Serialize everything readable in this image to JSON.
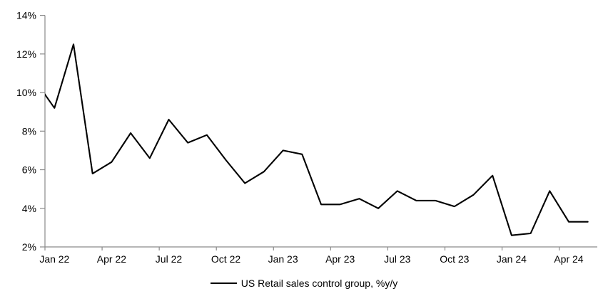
{
  "chart_data": {
    "type": "line",
    "title": "",
    "legend": "US Retail sales control group, %y/y",
    "x": [
      "Dec 21",
      "Jan 22",
      "Feb 22",
      "Mar 22",
      "Apr 22",
      "May 22",
      "Jun 22",
      "Jul 22",
      "Aug 22",
      "Sep 22",
      "Oct 22",
      "Nov 22",
      "Dec 22",
      "Jan 23",
      "Feb 23",
      "Mar 23",
      "Apr 23",
      "May 23",
      "Jun 23",
      "Jul 23",
      "Aug 23",
      "Sep 23",
      "Oct 23",
      "Nov 23",
      "Dec 23",
      "Jan 24",
      "Feb 24",
      "Mar 24",
      "Apr 24",
      "May 24"
    ],
    "values": [
      10.6,
      9.2,
      12.5,
      5.8,
      6.4,
      7.9,
      6.6,
      8.6,
      7.4,
      7.8,
      6.5,
      5.3,
      5.9,
      7.0,
      6.8,
      4.2,
      4.2,
      4.5,
      4.0,
      4.9,
      4.4,
      4.4,
      4.1,
      4.7,
      5.7,
      2.6,
      2.7,
      4.9,
      3.3,
      3.3
    ],
    "first_point_clipped_at_axis": true,
    "x_tick_labels": [
      "Jan 22",
      "Apr 22",
      "Jul 22",
      "Oct 22",
      "Jan 23",
      "Apr 23",
      "Jul 23",
      "Oct 23",
      "Jan 24",
      "Apr 24"
    ],
    "x_tick_label_interval_months": 3,
    "y_ticks": [
      2,
      4,
      6,
      8,
      10,
      12,
      14
    ],
    "y_tick_suffix": "%",
    "ylim": [
      2,
      14
    ],
    "grid": "off",
    "legend_position": "bottom-center",
    "line_color": "#000000",
    "axis_color": "#8a8a8a",
    "label_color": "#000000"
  }
}
